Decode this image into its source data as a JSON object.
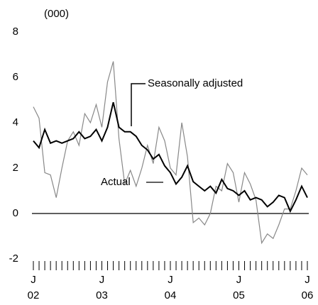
{
  "chart_data": {
    "type": "line",
    "unit_label": "(000)",
    "categories": [
      "J",
      null,
      null,
      null,
      null,
      null,
      null,
      null,
      null,
      null,
      null,
      null,
      "J",
      null,
      null,
      null,
      null,
      null,
      null,
      null,
      null,
      null,
      null,
      null,
      "J",
      null,
      null,
      null,
      null,
      null,
      null,
      null,
      null,
      null,
      null,
      null,
      "J",
      null,
      null,
      null,
      null,
      null,
      null,
      null,
      null,
      null,
      null,
      null,
      "J"
    ],
    "years": [
      "02",
      "03",
      "04",
      "05",
      "06"
    ],
    "series": [
      {
        "name": "Actual",
        "color": "#888888",
        "values": [
          4.7,
          4.2,
          1.8,
          1.7,
          0.7,
          2.0,
          3.2,
          3.6,
          3.0,
          4.4,
          4.0,
          4.8,
          3.8,
          5.8,
          6.7,
          3.3,
          1.3,
          1.9,
          1.2,
          2.0,
          3.0,
          2.2,
          3.8,
          3.2,
          2.0,
          1.7,
          4.0,
          2.5,
          -0.4,
          -0.2,
          -0.5,
          0.0,
          1.2,
          1.0,
          2.2,
          1.8,
          0.5,
          1.8,
          1.3,
          0.6,
          -1.3,
          -0.9,
          -1.1,
          -0.5,
          0.2,
          0.2,
          1.0,
          2.0,
          1.7
        ]
      },
      {
        "name": "Seasonally adjusted",
        "color": "#000000",
        "values": [
          3.2,
          2.9,
          3.7,
          3.1,
          3.2,
          3.1,
          3.2,
          3.3,
          3.6,
          3.3,
          3.4,
          3.7,
          3.2,
          3.8,
          4.9,
          3.8,
          3.6,
          3.6,
          3.4,
          3.0,
          2.8,
          2.4,
          2.6,
          2.1,
          1.8,
          1.3,
          1.6,
          2.1,
          1.4,
          1.2,
          1.0,
          1.2,
          0.9,
          1.5,
          1.1,
          1.0,
          0.8,
          1.0,
          0.6,
          0.7,
          0.6,
          0.3,
          0.5,
          0.8,
          0.7,
          0.1,
          0.6,
          1.2,
          0.7
        ]
      }
    ],
    "ylim": [
      -2,
      8
    ],
    "yticks": [
      -2,
      0,
      2,
      4,
      6,
      8
    ]
  }
}
